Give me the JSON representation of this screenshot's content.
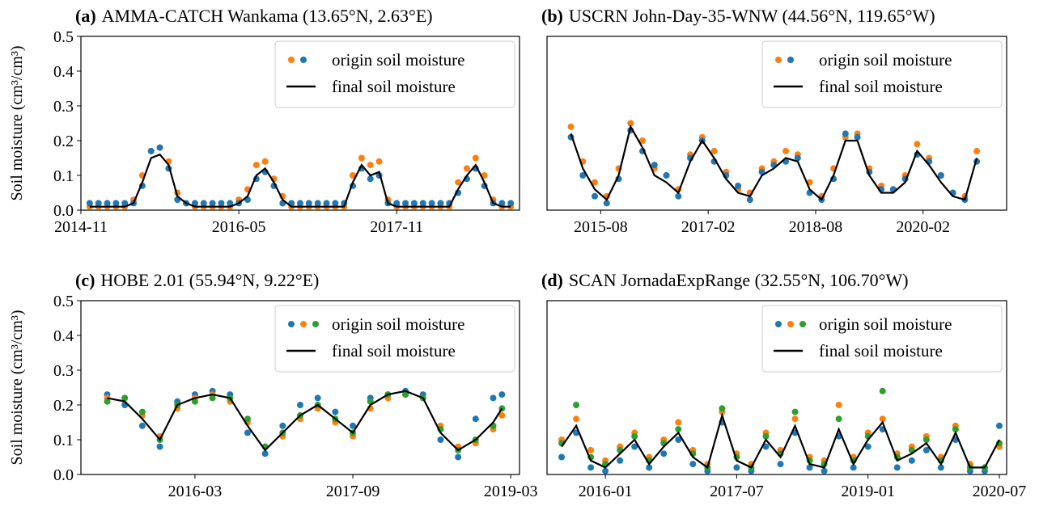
{
  "chart_data": [
    {
      "type": "scatter-line",
      "label": "(a)",
      "title": "AMMA-CATCH Wankama (13.65°N, 2.63°E)",
      "ylabel": "Soil moisture (cm³/cm³)",
      "xlim": [
        "2014-11",
        "2019-01"
      ],
      "xticks": [
        "2014-11",
        "2016-05",
        "2017-11"
      ],
      "ylim": [
        0,
        0.5
      ],
      "yticks": [
        {
          "value": 0,
          "label": "0.0"
        },
        0.1,
        0.2,
        0.3,
        0.4,
        0.5
      ],
      "legend": "upper right",
      "x": [
        "2014-12",
        "2015-01",
        "2015-02",
        "2015-03",
        "2015-04",
        "2015-05",
        "2015-06",
        "2015-07",
        "2015-08",
        "2015-09",
        "2015-10",
        "2015-11",
        "2015-12",
        "2016-01",
        "2016-02",
        "2016-03",
        "2016-04",
        "2016-05",
        "2016-06",
        "2016-07",
        "2016-08",
        "2016-09",
        "2016-10",
        "2016-11",
        "2016-12",
        "2017-01",
        "2017-02",
        "2017-03",
        "2017-04",
        "2017-05",
        "2017-06",
        "2017-07",
        "2017-08",
        "2017-09",
        "2017-10",
        "2017-11",
        "2017-12",
        "2018-01",
        "2018-02",
        "2018-03",
        "2018-04",
        "2018-05",
        "2018-06",
        "2018-07",
        "2018-08",
        "2018-09",
        "2018-10",
        "2018-11",
        "2018-12"
      ],
      "series": [
        {
          "name": "origin soil moisture",
          "colors": [
            "#ff7f0e",
            "#1f77b4"
          ],
          "values": [
            [
              0.01,
              0.01,
              0.01,
              0.01,
              0.01,
              0.03,
              0.1,
              0.17,
              0.18,
              0.14,
              0.05,
              0.02,
              0.01,
              0.01,
              0.01,
              0.01,
              0.01,
              0.03,
              0.06,
              0.13,
              0.14,
              0.09,
              0.04,
              0.01,
              0.01,
              0.01,
              0.01,
              0.01,
              0.01,
              0.01,
              0.1,
              0.15,
              0.13,
              0.14,
              0.03,
              0.01,
              0.01,
              0.01,
              0.01,
              0.01,
              0.01,
              0.01,
              0.08,
              0.12,
              0.15,
              0.1,
              0.03,
              0.01,
              0.01
            ],
            [
              0.02,
              0.02,
              0.02,
              0.02,
              0.02,
              0.02,
              0.07,
              0.17,
              0.18,
              0.12,
              0.03,
              0.02,
              0.02,
              0.02,
              0.02,
              0.02,
              0.02,
              0.02,
              0.03,
              0.09,
              0.11,
              0.07,
              0.02,
              0.02,
              0.02,
              0.02,
              0.02,
              0.02,
              0.02,
              0.02,
              0.07,
              0.12,
              0.09,
              0.1,
              0.02,
              0.02,
              0.02,
              0.02,
              0.02,
              0.02,
              0.02,
              0.02,
              0.05,
              0.09,
              0.12,
              0.07,
              0.02,
              0.02,
              0.02
            ]
          ]
        },
        {
          "name": "final soil moisture",
          "color": "#000000",
          "values": [
            0.01,
            0.01,
            0.01,
            0.01,
            0.01,
            0.02,
            0.08,
            0.15,
            0.16,
            0.13,
            0.04,
            0.02,
            0.01,
            0.01,
            0.01,
            0.01,
            0.01,
            0.02,
            0.04,
            0.1,
            0.12,
            0.08,
            0.03,
            0.01,
            0.01,
            0.01,
            0.01,
            0.01,
            0.01,
            0.01,
            0.08,
            0.13,
            0.1,
            0.11,
            0.02,
            0.01,
            0.01,
            0.01,
            0.01,
            0.01,
            0.01,
            0.01,
            0.06,
            0.1,
            0.13,
            0.08,
            0.02,
            0.01,
            0.01
          ]
        }
      ]
    },
    {
      "type": "scatter-line",
      "label": "(b)",
      "title": "USCRN John-Day-35-WNW (44.56°N, 119.65°W)",
      "xlim": [
        "2014-11",
        "2021-04"
      ],
      "xticks": [
        "2015-08",
        "2017-02",
        "2018-08",
        "2020-02"
      ],
      "ylim": [
        0,
        0.5
      ],
      "legend": "upper right",
      "x": [
        "2015-03",
        "2015-05",
        "2015-07",
        "2015-09",
        "2015-11",
        "2016-01",
        "2016-03",
        "2016-05",
        "2016-07",
        "2016-09",
        "2016-11",
        "2017-01",
        "2017-03",
        "2017-05",
        "2017-07",
        "2017-09",
        "2017-11",
        "2018-01",
        "2018-03",
        "2018-05",
        "2018-07",
        "2018-09",
        "2018-11",
        "2019-01",
        "2019-03",
        "2019-05",
        "2019-07",
        "2019-09",
        "2019-11",
        "2020-01",
        "2020-03",
        "2020-05",
        "2020-07",
        "2020-09",
        "2020-11"
      ],
      "series": [
        {
          "name": "origin soil moisture",
          "colors": [
            "#ff7f0e",
            "#1f77b4"
          ],
          "values": [
            [
              0.24,
              0.14,
              0.08,
              0.04,
              0.12,
              0.25,
              0.2,
              0.12,
              0.1,
              0.06,
              0.16,
              0.21,
              0.17,
              0.11,
              0.06,
              0.05,
              0.12,
              0.14,
              0.17,
              0.16,
              0.08,
              0.04,
              0.12,
              0.21,
              0.22,
              0.12,
              0.07,
              0.06,
              0.1,
              0.19,
              0.15,
              0.1,
              0.05,
              0.04,
              0.17
            ],
            [
              0.21,
              0.1,
              0.04,
              0.02,
              0.09,
              0.23,
              0.17,
              0.13,
              0.1,
              0.04,
              0.15,
              0.2,
              0.14,
              0.1,
              0.07,
              0.03,
              0.11,
              0.13,
              0.14,
              0.15,
              0.05,
              0.03,
              0.09,
              0.22,
              0.21,
              0.11,
              0.06,
              0.06,
              0.09,
              0.16,
              0.14,
              0.1,
              0.05,
              0.03,
              0.14
            ]
          ]
        },
        {
          "name": "final soil moisture",
          "color": "#000000",
          "values": [
            0.22,
            0.12,
            0.06,
            0.03,
            0.1,
            0.24,
            0.18,
            0.1,
            0.08,
            0.05,
            0.14,
            0.2,
            0.15,
            0.09,
            0.05,
            0.04,
            0.1,
            0.12,
            0.15,
            0.14,
            0.06,
            0.03,
            0.1,
            0.2,
            0.2,
            0.1,
            0.05,
            0.05,
            0.08,
            0.17,
            0.13,
            0.08,
            0.04,
            0.03,
            0.15
          ]
        }
      ]
    },
    {
      "type": "scatter-line",
      "label": "(c)",
      "title": "HOBE 2.01 (55.94°N, 9.22°E)",
      "ylabel": "Soil moisture (cm³/cm³)",
      "xlim": [
        "2015-02",
        "2019-04"
      ],
      "xticks": [
        "2016-03",
        "2017-09",
        "2019-03"
      ],
      "ylim": [
        0,
        0.5
      ],
      "yticks": [
        {
          "value": 0,
          "label": "0.0"
        },
        0.1,
        0.2,
        0.3,
        0.4,
        0.5
      ],
      "legend": "upper right",
      "x": [
        "2015-05",
        "2015-07",
        "2015-09",
        "2015-11",
        "2016-01",
        "2016-03",
        "2016-05",
        "2016-07",
        "2016-09",
        "2016-11",
        "2017-01",
        "2017-03",
        "2017-05",
        "2017-07",
        "2017-09",
        "2017-11",
        "2018-01",
        "2018-03",
        "2018-05",
        "2018-07",
        "2018-09",
        "2018-11",
        "2019-01",
        "2019-02"
      ],
      "series": [
        {
          "name": "origin soil moisture",
          "colors": [
            "#1f77b4",
            "#ff7f0e",
            "#2ca02c"
          ],
          "values": [
            [
              0.23,
              0.2,
              0.14,
              0.08,
              0.21,
              0.23,
              0.24,
              0.23,
              0.12,
              0.06,
              0.14,
              0.2,
              0.22,
              0.18,
              0.14,
              0.22,
              0.23,
              0.24,
              0.23,
              0.1,
              0.05,
              0.16,
              0.22,
              0.23
            ],
            [
              0.22,
              0.22,
              0.17,
              0.11,
              0.19,
              0.22,
              0.23,
              0.21,
              0.15,
              0.08,
              0.11,
              0.16,
              0.19,
              0.15,
              0.11,
              0.19,
              0.22,
              0.23,
              0.22,
              0.14,
              0.08,
              0.09,
              0.13,
              0.17
            ],
            [
              0.21,
              0.22,
              0.18,
              0.1,
              0.2,
              0.21,
              0.22,
              0.22,
              0.16,
              0.08,
              0.12,
              0.17,
              0.2,
              0.16,
              0.12,
              0.21,
              0.23,
              0.23,
              0.22,
              0.13,
              0.07,
              0.1,
              0.14,
              0.19
            ]
          ]
        },
        {
          "name": "final soil moisture",
          "color": "#000000",
          "values": [
            0.22,
            0.21,
            0.16,
            0.1,
            0.2,
            0.22,
            0.23,
            0.22,
            0.14,
            0.07,
            0.12,
            0.17,
            0.2,
            0.16,
            0.12,
            0.2,
            0.23,
            0.24,
            0.22,
            0.12,
            0.07,
            0.1,
            0.15,
            0.19
          ]
        }
      ]
    },
    {
      "type": "scatter-line",
      "label": "(d)",
      "title": "SCAN JornadaExpRange (32.55°N, 106.70°W)",
      "xlim": [
        "2015-05",
        "2020-08"
      ],
      "xticks": [
        "2016-01",
        "2017-07",
        "2019-01",
        "2020-07"
      ],
      "ylim": [
        0,
        0.5
      ],
      "legend": "upper right",
      "x": [
        "2015-07",
        "2015-09",
        "2015-11",
        "2016-01",
        "2016-03",
        "2016-05",
        "2016-07",
        "2016-09",
        "2016-11",
        "2017-01",
        "2017-03",
        "2017-05",
        "2017-07",
        "2017-09",
        "2017-11",
        "2018-01",
        "2018-03",
        "2018-05",
        "2018-07",
        "2018-09",
        "2018-11",
        "2019-01",
        "2019-03",
        "2019-05",
        "2019-07",
        "2019-09",
        "2019-11",
        "2020-01",
        "2020-03",
        "2020-05",
        "2020-07"
      ],
      "series": [
        {
          "name": "origin soil moisture",
          "colors": [
            "#1f77b4",
            "#ff7f0e",
            "#2ca02c"
          ],
          "values": [
            [
              0.05,
              0.12,
              0.02,
              0.01,
              0.04,
              0.08,
              0.02,
              0.06,
              0.1,
              0.03,
              0.01,
              0.15,
              0.02,
              0.01,
              0.08,
              0.03,
              0.12,
              0.02,
              0.01,
              0.11,
              0.02,
              0.08,
              0.13,
              0.02,
              0.04,
              0.07,
              0.02,
              0.1,
              0.01,
              0.01,
              0.14
            ],
            [
              0.1,
              0.16,
              0.07,
              0.04,
              0.08,
              0.12,
              0.05,
              0.1,
              0.15,
              0.07,
              0.03,
              0.18,
              0.06,
              0.03,
              0.12,
              0.07,
              0.16,
              0.05,
              0.04,
              0.2,
              0.05,
              0.12,
              0.16,
              0.06,
              0.08,
              0.11,
              0.05,
              0.14,
              0.03,
              0.02,
              0.08
            ],
            [
              0.09,
              0.2,
              0.05,
              0.03,
              0.07,
              0.11,
              0.04,
              0.09,
              0.13,
              0.06,
              0.02,
              0.19,
              0.05,
              0.02,
              0.11,
              0.06,
              0.18,
              0.04,
              0.03,
              0.16,
              0.04,
              0.11,
              0.24,
              0.05,
              0.07,
              0.1,
              0.04,
              0.13,
              0.02,
              0.02,
              0.09
            ]
          ]
        },
        {
          "name": "final soil moisture",
          "color": "#000000",
          "values": [
            0.08,
            0.14,
            0.04,
            0.02,
            0.06,
            0.1,
            0.03,
            0.08,
            0.12,
            0.05,
            0.02,
            0.17,
            0.04,
            0.02,
            0.1,
            0.05,
            0.14,
            0.03,
            0.02,
            0.13,
            0.03,
            0.1,
            0.15,
            0.04,
            0.06,
            0.09,
            0.03,
            0.12,
            0.02,
            0.02,
            0.1
          ]
        }
      ]
    }
  ]
}
